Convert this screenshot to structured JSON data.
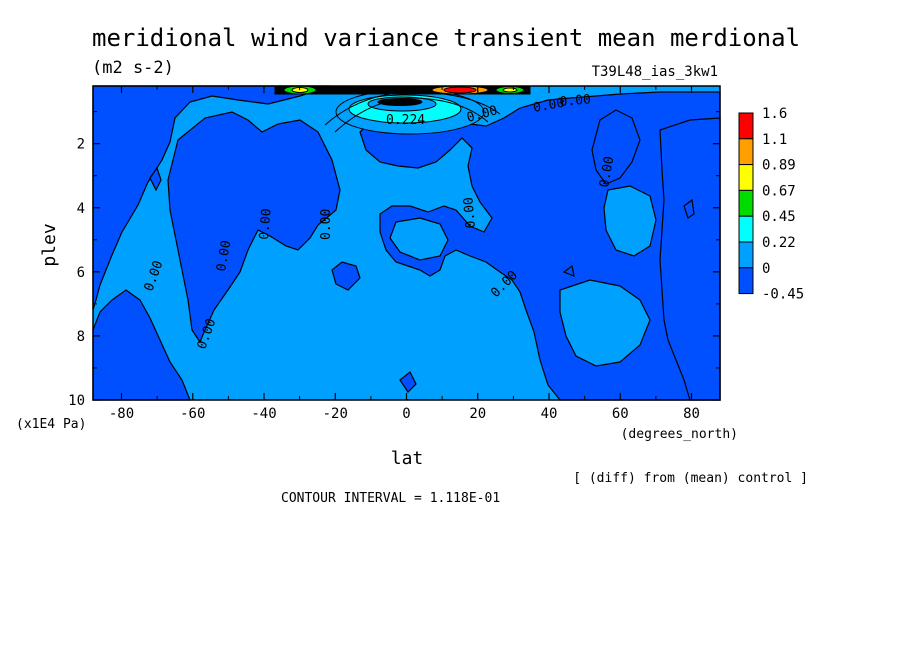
{
  "chart_data": {
    "type": "heatmap",
    "title": "meridional wind variance transient mean merdional",
    "units": "(m2 s-2)",
    "run_label": "T39L48_ias_3kw1",
    "xlabel": "lat",
    "x_units": "(degrees_north)",
    "ylabel": "plev",
    "y_units": "(x1E4 Pa)",
    "xlim": [
      -88,
      88
    ],
    "ylim": [
      0.2,
      10
    ],
    "y_inverted": true,
    "x_ticks": [
      "-80",
      "-60",
      "-40",
      "-20",
      "0",
      "20",
      "40",
      "60",
      "80"
    ],
    "y_ticks": [
      "2",
      "4",
      "6",
      "8",
      "10"
    ],
    "colorbar": {
      "levels": [
        "1.6",
        "1.1",
        "0.89",
        "0.67",
        "0.45",
        "0.22",
        "0",
        "-0.45"
      ],
      "colors": [
        "#ff0000",
        "#ff9f00",
        "#ffff00",
        "#00dc00",
        "#00ffff",
        "#00a0ff",
        "#0050ff"
      ]
    },
    "contour_labels": [
      "0.00",
      "0.00",
      "0.00",
      "0.00",
      "0.00",
      "0.00",
      "0.00",
      "0.00",
      "0.00",
      "0.00",
      "0.00",
      "0.00",
      "0.224"
    ],
    "contour_interval": "CONTOUR INTERVAL = 1.118E-01",
    "footnote": "[ (diff) from (mean) control ]"
  }
}
